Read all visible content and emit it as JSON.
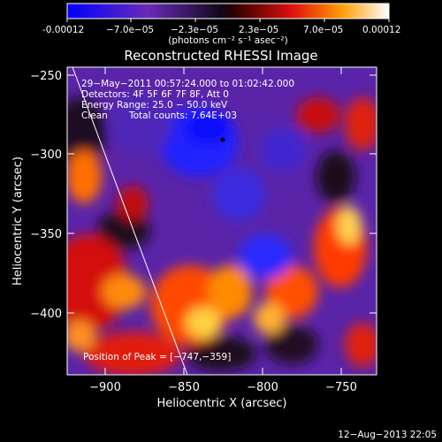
{
  "colorbar": {
    "ticks": [
      "-0.00012",
      "−7.0e−05",
      "−2.3e−05",
      "2.3e−05",
      "7.0e−05",
      "0.00012"
    ],
    "units": "(photons cm⁻² s⁻¹ asec⁻²)"
  },
  "title": "Reconstructed RHESSI Image",
  "axes": {
    "xlabel": "Heliocentric X (arcsec)",
    "ylabel": "Heliocentric Y (arcsec)",
    "xticks": [
      "−900",
      "−850",
      "−800",
      "−750"
    ],
    "yticks": [
      "−250",
      "−300",
      "−350",
      "−400"
    ]
  },
  "info": {
    "time": "29−May−2011 00:57:24.000 to 01:02:42.000",
    "detectors": "Detectors: 4F 5F 6F 7F 8F, Att 0",
    "energy": "Energy Range: 25.0 − 50.0 keV",
    "method": "Clean",
    "counts": "Total counts: 7.64E+03"
  },
  "peak": "Position of Peak = [−747,−359]",
  "footer_date": "12−Aug−2013 22:05",
  "colors": {
    "low": "#1010ff",
    "mid": "#000000",
    "high": "#ffffff"
  }
}
